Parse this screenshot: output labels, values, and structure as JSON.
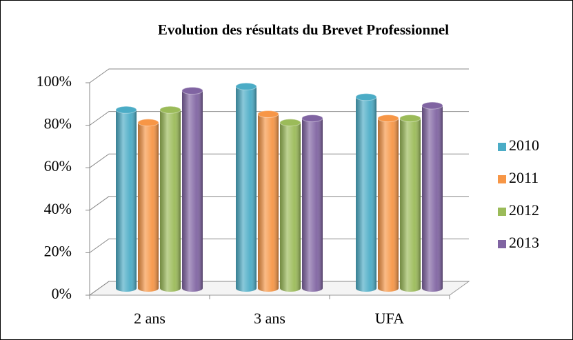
{
  "chart_data": {
    "type": "bar",
    "title": "Evolution des résultats du Brevet Professionnel",
    "categories": [
      "2 ans",
      "3 ans",
      "UFA"
    ],
    "series": [
      {
        "name": "2010",
        "color": "#4bacc6",
        "values": [
          84,
          95,
          90
        ]
      },
      {
        "name": "2011",
        "color": "#f79646",
        "values": [
          78,
          82,
          80
        ]
      },
      {
        "name": "2012",
        "color": "#9bbb59",
        "values": [
          84,
          78,
          80
        ]
      },
      {
        "name": "2013",
        "color": "#8064a2",
        "values": [
          93,
          80,
          86
        ]
      }
    ],
    "ylim": [
      0,
      100
    ],
    "yticks": [
      {
        "value": 0,
        "label": "0%"
      },
      {
        "value": 20,
        "label": "20%"
      },
      {
        "value": 40,
        "label": "40%"
      },
      {
        "value": 60,
        "label": "60%"
      },
      {
        "value": 80,
        "label": "80%"
      },
      {
        "value": 100,
        "label": "100%"
      }
    ],
    "grid": true,
    "legend": "right"
  }
}
